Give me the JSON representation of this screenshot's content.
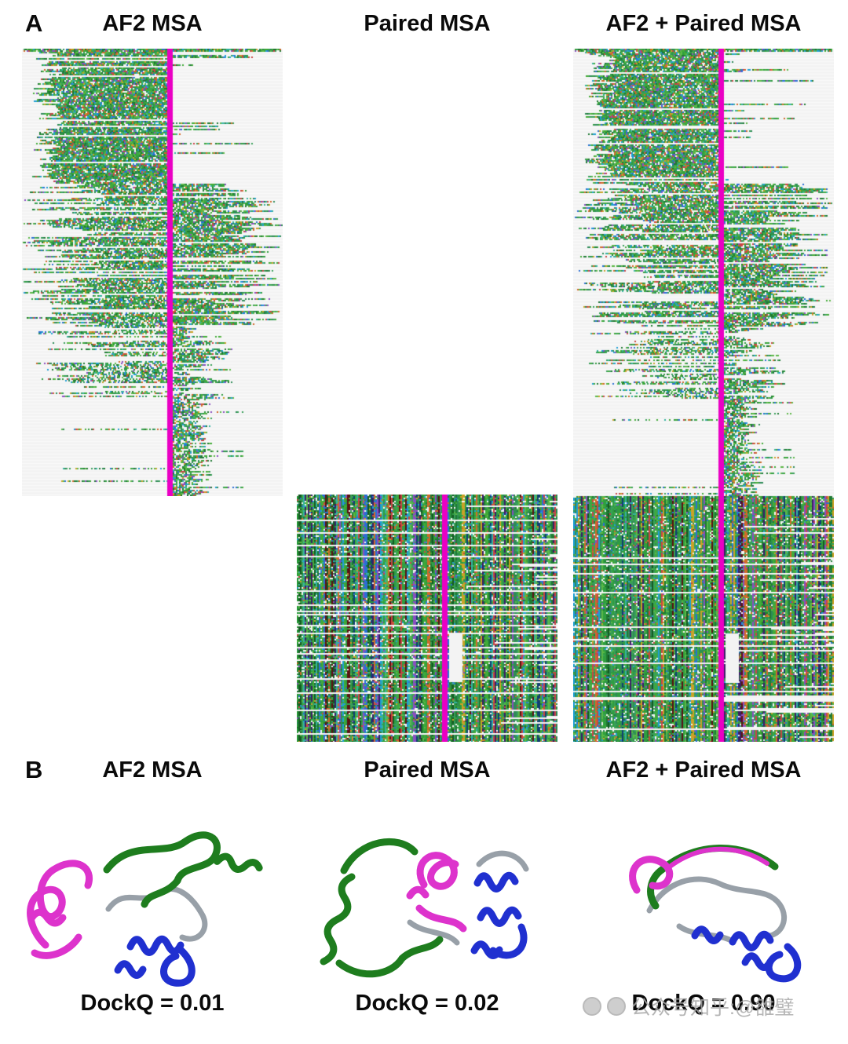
{
  "panel_a": {
    "label": "A",
    "columns": [
      {
        "title": "AF2 MSA"
      },
      {
        "title": "Paired MSA"
      },
      {
        "title": "AF2 + Paired MSA"
      }
    ]
  },
  "panel_b": {
    "label": "B",
    "columns": [
      {
        "title": "AF2 MSA",
        "dockq": "DockQ = 0.01"
      },
      {
        "title": "Paired MSA",
        "dockq": "DockQ = 0.02"
      },
      {
        "title": "AF2 + Paired MSA",
        "dockq": "DockQ = 0.90"
      }
    ]
  },
  "watermark": {
    "text": "公众号知乎:@雒璧"
  },
  "colors": {
    "msa_marker": "#ea00c4",
    "ribbon_magenta": "#dd33cc",
    "ribbon_green": "#1e7d1e",
    "ribbon_blue": "#2030d0",
    "ribbon_gray": "#98a0a8"
  }
}
